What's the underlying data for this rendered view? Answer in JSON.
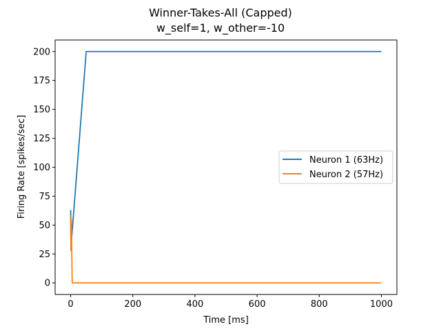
{
  "chart_data": {
    "type": "line",
    "title_line1": "Winner-Takes-All (Capped)",
    "title_line2": "w_self=1, w_other=-10",
    "xlabel": "Time [ms]",
    "ylabel": "Firing Rate [spikes/sec]",
    "xlim": [
      -50,
      1050
    ],
    "ylim": [
      -10,
      210
    ],
    "xticks": [
      0,
      200,
      400,
      600,
      800,
      1000
    ],
    "yticks": [
      0,
      25,
      50,
      75,
      100,
      125,
      150,
      175,
      200
    ],
    "grid": false,
    "legend_position": "center-right",
    "series": [
      {
        "name": "Neuron 1 (63Hz)",
        "color": "#1f77b4",
        "x": [
          0,
          1,
          50,
          1000
        ],
        "y": [
          63,
          31,
          200,
          200
        ]
      },
      {
        "name": "Neuron 2 (57Hz)",
        "color": "#ff7f0e",
        "x": [
          0,
          1,
          2,
          5,
          1000
        ],
        "y": [
          57,
          28,
          56,
          0,
          0
        ]
      }
    ]
  }
}
